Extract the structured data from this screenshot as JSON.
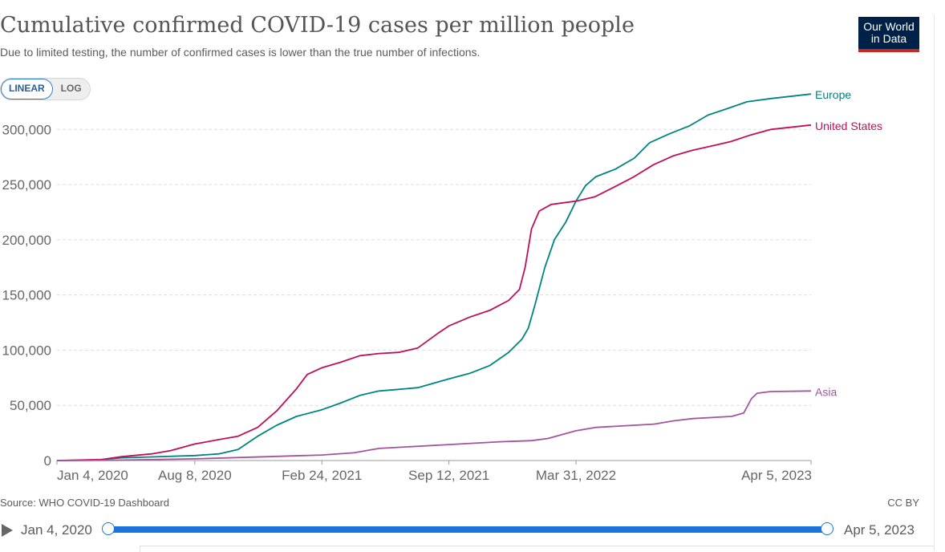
{
  "header": {
    "title": "Cumulative confirmed COVID-19 cases per million people",
    "subtitle": "Due to limited testing, the number of confirmed cases is lower than the true number of infections.",
    "logo_line1": "Our World",
    "logo_line2": "in Data"
  },
  "scale_toggle": {
    "linear_label": "LINEAR",
    "log_label": "LOG",
    "selected": "LINEAR"
  },
  "footer": {
    "source": "Source: WHO COVID-19 Dashboard",
    "license": "CC BY"
  },
  "timeline": {
    "start_label": "Jan 4, 2020",
    "end_label": "Apr 5, 2023"
  },
  "colors": {
    "accent": "#1a73d9",
    "logo_bg": "#002147",
    "logo_bar": "#ce261e"
  },
  "chart_data": {
    "type": "line",
    "title": "Cumulative confirmed COVID-19 cases per million people",
    "subtitle": "Due to limited testing, the number of confirmed cases is lower than the true number of infections.",
    "xlabel": "",
    "ylabel": "",
    "xlim": [
      "2020-01-04",
      "2023-04-05"
    ],
    "ylim": [
      0,
      330000
    ],
    "x_ticks": [
      "Jan 4, 2020",
      "Aug 8, 2020",
      "Feb 24, 2021",
      "Sep 12, 2021",
      "Mar 31, 2022",
      "Apr 5, 2023"
    ],
    "y_ticks": [
      "0",
      "50,000",
      "100,000",
      "150,000",
      "200,000",
      "250,000",
      "300,000"
    ],
    "y_tick_values": [
      0,
      50000,
      100000,
      150000,
      200000,
      250000,
      300000
    ],
    "grid": "horizontal dashed",
    "legend": "right-end labels",
    "series": [
      {
        "name": "Europe",
        "color": "#00847e",
        "points": [
          [
            "2020-01-04",
            0
          ],
          [
            "2020-03-01",
            300
          ],
          [
            "2020-04-15",
            2500
          ],
          [
            "2020-06-01",
            3300
          ],
          [
            "2020-08-08",
            4500
          ],
          [
            "2020-09-15",
            6000
          ],
          [
            "2020-10-15",
            10000
          ],
          [
            "2020-11-15",
            22000
          ],
          [
            "2020-12-15",
            32000
          ],
          [
            "2021-01-15",
            40000
          ],
          [
            "2021-02-24",
            46000
          ],
          [
            "2021-03-25",
            52000
          ],
          [
            "2021-04-25",
            59000
          ],
          [
            "2021-05-25",
            63000
          ],
          [
            "2021-06-25",
            64500
          ],
          [
            "2021-07-25",
            66000
          ],
          [
            "2021-08-25",
            71000
          ],
          [
            "2021-09-12",
            74000
          ],
          [
            "2021-10-15",
            79000
          ],
          [
            "2021-11-15",
            86000
          ],
          [
            "2021-12-15",
            98000
          ],
          [
            "2022-01-05",
            110000
          ],
          [
            "2022-01-15",
            120000
          ],
          [
            "2022-01-25",
            140000
          ],
          [
            "2022-02-10",
            175000
          ],
          [
            "2022-02-25",
            200000
          ],
          [
            "2022-03-15",
            216000
          ],
          [
            "2022-03-31",
            235000
          ],
          [
            "2022-04-15",
            249000
          ],
          [
            "2022-05-01",
            257000
          ],
          [
            "2022-06-01",
            264000
          ],
          [
            "2022-07-01",
            274000
          ],
          [
            "2022-07-25",
            288000
          ],
          [
            "2022-08-25",
            296000
          ],
          [
            "2022-09-25",
            303000
          ],
          [
            "2022-10-25",
            313000
          ],
          [
            "2022-11-25",
            319000
          ],
          [
            "2022-12-25",
            325000
          ],
          [
            "2023-02-01",
            328000
          ],
          [
            "2023-04-05",
            332000
          ]
        ]
      },
      {
        "name": "United States",
        "color": "#be1059",
        "points": [
          [
            "2020-01-04",
            0
          ],
          [
            "2020-03-15",
            1000
          ],
          [
            "2020-04-15",
            3500
          ],
          [
            "2020-06-01",
            6000
          ],
          [
            "2020-07-01",
            9000
          ],
          [
            "2020-08-08",
            15000
          ],
          [
            "2020-09-15",
            19000
          ],
          [
            "2020-10-15",
            22000
          ],
          [
            "2020-11-15",
            30000
          ],
          [
            "2020-12-15",
            45000
          ],
          [
            "2021-01-15",
            65000
          ],
          [
            "2021-02-01",
            78000
          ],
          [
            "2021-02-24",
            84000
          ],
          [
            "2021-03-25",
            89000
          ],
          [
            "2021-04-25",
            95000
          ],
          [
            "2021-05-25",
            97000
          ],
          [
            "2021-06-25",
            98000
          ],
          [
            "2021-07-25",
            102000
          ],
          [
            "2021-08-25",
            115000
          ],
          [
            "2021-09-12",
            122000
          ],
          [
            "2021-10-15",
            130000
          ],
          [
            "2021-11-15",
            136000
          ],
          [
            "2021-12-15",
            145000
          ],
          [
            "2022-01-01",
            155000
          ],
          [
            "2022-01-10",
            175000
          ],
          [
            "2022-01-20",
            210000
          ],
          [
            "2022-02-01",
            226000
          ],
          [
            "2022-02-20",
            232000
          ],
          [
            "2022-03-31",
            235000
          ],
          [
            "2022-04-30",
            239000
          ],
          [
            "2022-05-31",
            248000
          ],
          [
            "2022-06-30",
            257000
          ],
          [
            "2022-07-31",
            268000
          ],
          [
            "2022-08-31",
            276000
          ],
          [
            "2022-09-30",
            281000
          ],
          [
            "2022-10-31",
            285000
          ],
          [
            "2022-11-30",
            289000
          ],
          [
            "2022-12-31",
            295000
          ],
          [
            "2023-02-01",
            300000
          ],
          [
            "2023-04-05",
            304000
          ]
        ]
      },
      {
        "name": "Asia",
        "color": "#a2559c",
        "points": [
          [
            "2020-01-04",
            0
          ],
          [
            "2020-04-01",
            300
          ],
          [
            "2020-08-08",
            1500
          ],
          [
            "2020-12-01",
            3500
          ],
          [
            "2021-02-24",
            5000
          ],
          [
            "2021-04-15",
            7000
          ],
          [
            "2021-05-25",
            11000
          ],
          [
            "2021-09-12",
            14500
          ],
          [
            "2021-12-01",
            17000
          ],
          [
            "2022-01-20",
            18000
          ],
          [
            "2022-02-15",
            20000
          ],
          [
            "2022-03-31",
            27000
          ],
          [
            "2022-05-01",
            30000
          ],
          [
            "2022-08-01",
            33000
          ],
          [
            "2022-09-01",
            36000
          ],
          [
            "2022-10-01",
            38000
          ],
          [
            "2022-12-01",
            40000
          ],
          [
            "2022-12-20",
            43000
          ],
          [
            "2023-01-01",
            56000
          ],
          [
            "2023-01-10",
            61000
          ],
          [
            "2023-02-01",
            62500
          ],
          [
            "2023-04-05",
            63000
          ]
        ]
      }
    ]
  }
}
